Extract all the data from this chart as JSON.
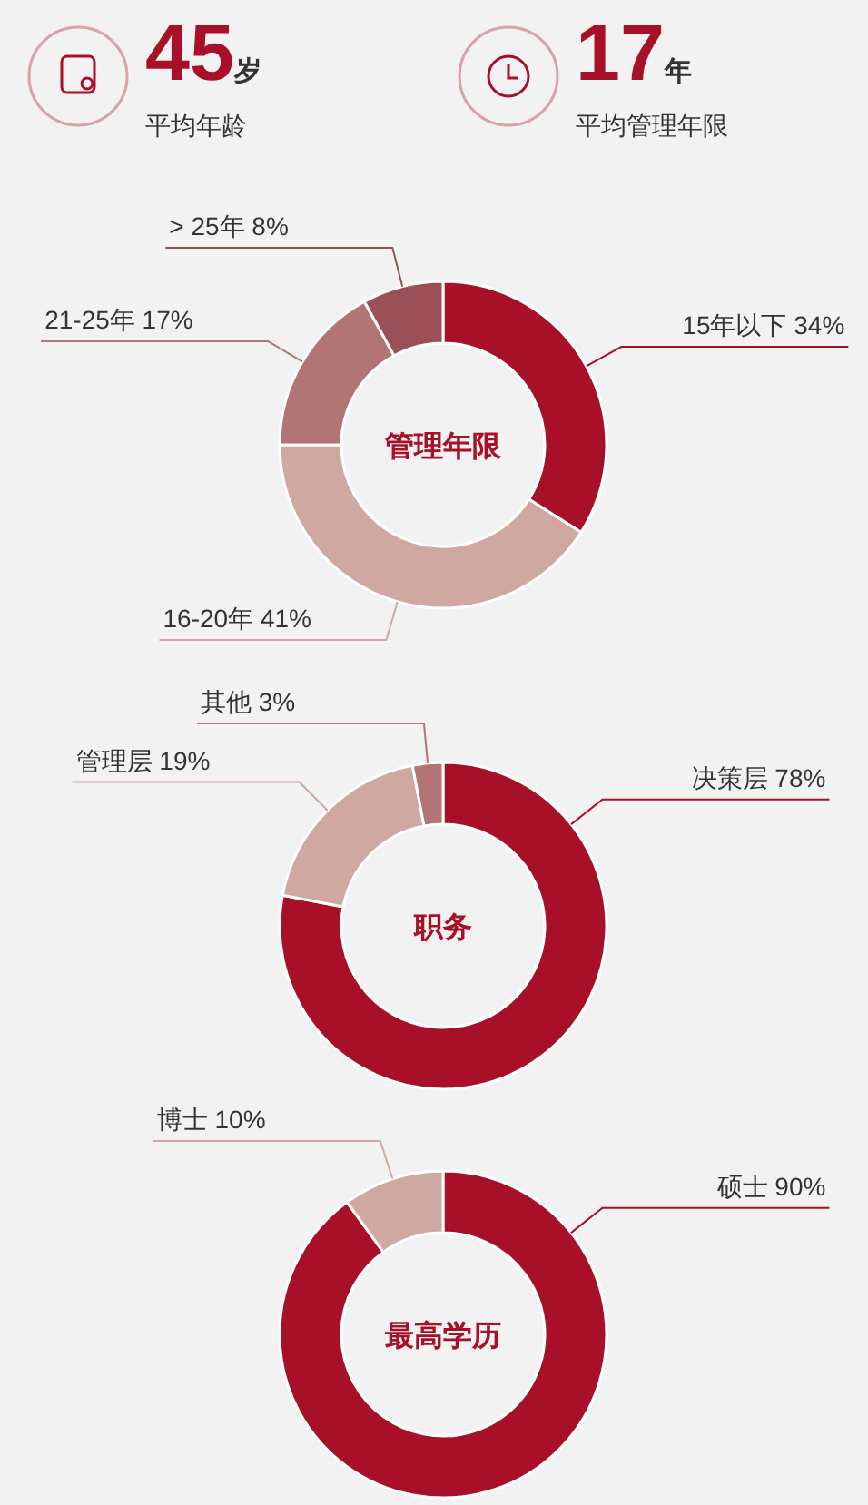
{
  "chart_data": [
    {
      "type": "other",
      "annotations": [
        "45",
        "岁",
        "平均年龄",
        "17",
        "年",
        "平均管理年限"
      ]
    },
    {
      "type": "donut",
      "title": "管理年限",
      "categories": [
        "15年以下",
        "16-20年",
        "21-25年",
        "> 25年"
      ],
      "values": [
        34,
        41,
        17,
        8
      ],
      "value_labels": [
        "34%",
        "41%",
        "17%",
        "8%"
      ],
      "colors": [
        "#a8102a",
        "#d0a8a2",
        "#b07574",
        "#9b4f56"
      ]
    },
    {
      "type": "donut",
      "title": "职务",
      "categories": [
        "决策层",
        "管理层",
        "其他"
      ],
      "values": [
        78,
        19,
        3
      ],
      "value_labels": [
        "78%",
        "19%",
        "3%"
      ],
      "colors": [
        "#a8102a",
        "#d0a8a2",
        "#b07574"
      ]
    },
    {
      "type": "donut",
      "title": "最高学历",
      "categories": [
        "硕士",
        "博士"
      ],
      "values": [
        90,
        10
      ],
      "value_labels": [
        "90%",
        "10%"
      ],
      "colors": [
        "#a8102a",
        "#d0a8a2"
      ]
    }
  ]
}
